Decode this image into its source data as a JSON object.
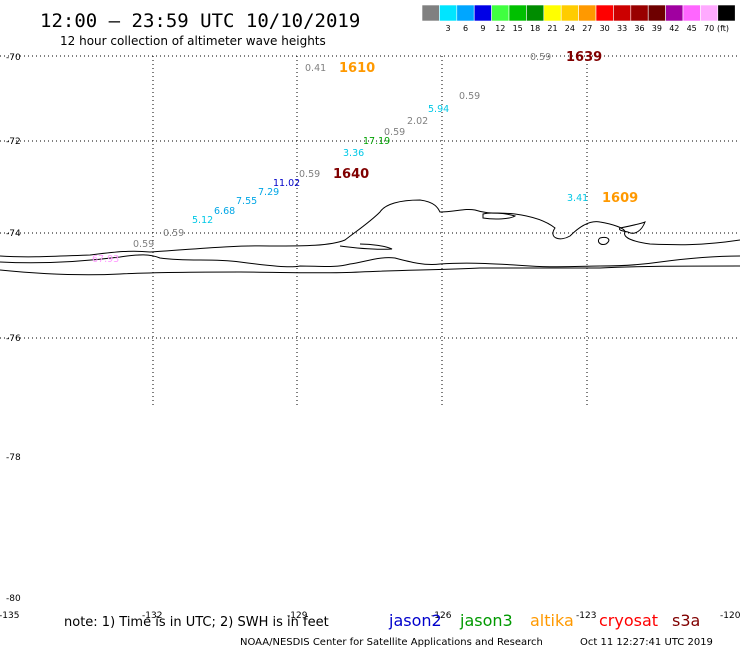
{
  "header": {
    "title": "12:00 – 23:59 UTC 10/10/2019",
    "subtitle": "12 hour collection of altimeter wave heights"
  },
  "legend": {
    "unit_label": "(ft)",
    "swatches": [
      {
        "color": "#808080",
        "label": ""
      },
      {
        "color": "#00e5ff",
        "label": "3"
      },
      {
        "color": "#00a6ff",
        "label": "6"
      },
      {
        "color": "#0000e6",
        "label": "9"
      },
      {
        "color": "#40ff40",
        "label": "12"
      },
      {
        "color": "#00c000",
        "label": "15"
      },
      {
        "color": "#008c00",
        "label": "18"
      },
      {
        "color": "#ffff00",
        "label": "21"
      },
      {
        "color": "#ffcc00",
        "label": "24"
      },
      {
        "color": "#ff9900",
        "label": "27"
      },
      {
        "color": "#ff0000",
        "label": "30"
      },
      {
        "color": "#cc0000",
        "label": "33"
      },
      {
        "color": "#990000",
        "label": "36"
      },
      {
        "color": "#6e0000",
        "label": "39"
      },
      {
        "color": "#a000a0",
        "label": "42"
      },
      {
        "color": "#ff66ff",
        "label": "45"
      },
      {
        "color": "#ffaaff",
        "label": "70"
      },
      {
        "color": "#000000",
        "label": ""
      }
    ]
  },
  "axes": {
    "lat_labels": [
      "-70",
      "-72",
      "-74",
      "-76",
      "-78",
      "-80"
    ],
    "lon_labels": [
      "-135",
      "-132",
      "-129",
      "-126",
      "-123",
      "-120"
    ]
  },
  "observations": [
    {
      "value": "0.41",
      "color": "#808080"
    },
    {
      "value": "0.59",
      "color": "#808080"
    },
    {
      "value": "0.59",
      "color": "#808080"
    },
    {
      "value": "5.94",
      "color": "#00c8e6"
    },
    {
      "value": "2.02",
      "color": "#808080"
    },
    {
      "value": "0.59",
      "color": "#808080"
    },
    {
      "value": "17.19",
      "color": "#00a000"
    },
    {
      "value": "3.36",
      "color": "#00c8e6"
    },
    {
      "value": "0.59",
      "color": "#808080"
    },
    {
      "value": "11.02",
      "color": "#0000c8"
    },
    {
      "value": "7.29",
      "color": "#00a6e6"
    },
    {
      "value": "7.55",
      "color": "#00a6e6"
    },
    {
      "value": "6.68",
      "color": "#00a6e6"
    },
    {
      "value": "5.12",
      "color": "#00c8e6"
    },
    {
      "value": "0.59",
      "color": "#808080"
    },
    {
      "value": "0.59",
      "color": "#808080"
    },
    {
      "value": "67.93",
      "color": "#ff99ff"
    },
    {
      "value": "3.41",
      "color": "#00c8e6"
    }
  ],
  "times": [
    {
      "value": "1610",
      "color": "#ff9900"
    },
    {
      "value": "1639",
      "color": "#800000"
    },
    {
      "value": "1640",
      "color": "#800000"
    },
    {
      "value": "1609",
      "color": "#ff9900"
    }
  ],
  "footer": {
    "note": "note: 1) Time is in UTC; 2) SWH is in feet",
    "satellites": [
      {
        "name": "jason2",
        "color": "#0000cc"
      },
      {
        "name": "jason3",
        "color": "#009900"
      },
      {
        "name": "altika",
        "color": "#ff9900"
      },
      {
        "name": "cryosat",
        "color": "#ff0000"
      },
      {
        "name": "s3a",
        "color": "#800000"
      }
    ],
    "credit": "NOAA/NESDIS Center for Satellite Applications and Research",
    "timestamp": "Oct 11 12:27:41 UTC 2019"
  }
}
